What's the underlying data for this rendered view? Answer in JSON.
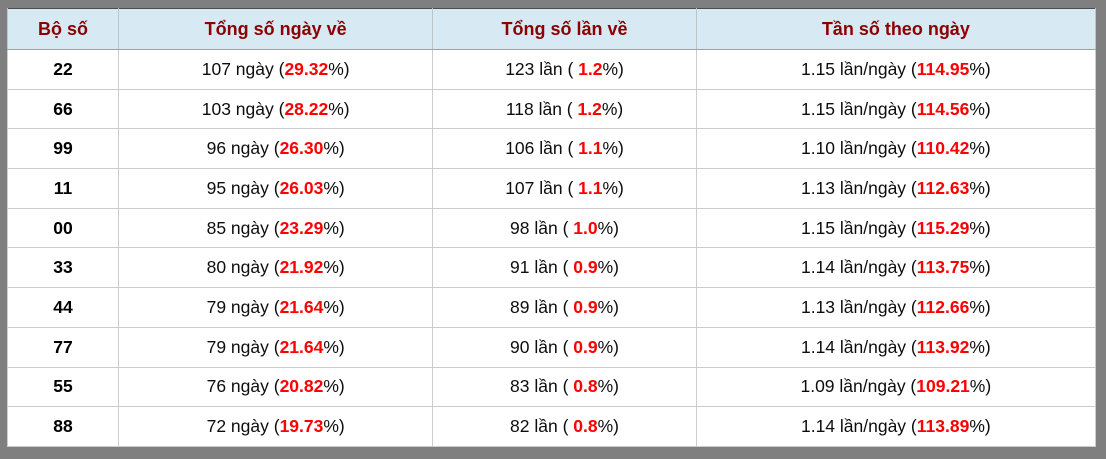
{
  "colors": {
    "frame-gray": "#7f7f7f",
    "header-bg": "#d7eaf4",
    "header-text": "#8b0000",
    "accent-red": "#ff0000",
    "cell-border": "#cccccc"
  },
  "table": {
    "headers": [
      "Bộ số",
      "Tổng số ngày về",
      "Tổng số lần về",
      "Tần số theo ngày"
    ],
    "rows": [
      {
        "pair": "22",
        "days": {
          "pre": "107 ngày (",
          "red": "29.32",
          "post": "%)"
        },
        "times": {
          "pre": "123 lần ( ",
          "red": "1.2",
          "post": "%)"
        },
        "freq": {
          "pre": "1.15 lần/ngày (",
          "red": "114.95",
          "post": "%)"
        }
      },
      {
        "pair": "66",
        "days": {
          "pre": "103 ngày (",
          "red": "28.22",
          "post": "%)"
        },
        "times": {
          "pre": "118 lần ( ",
          "red": "1.2",
          "post": "%)"
        },
        "freq": {
          "pre": "1.15 lần/ngày (",
          "red": "114.56",
          "post": "%)"
        }
      },
      {
        "pair": "99",
        "days": {
          "pre": "96 ngày (",
          "red": "26.30",
          "post": "%)"
        },
        "times": {
          "pre": "106 lần ( ",
          "red": "1.1",
          "post": "%)"
        },
        "freq": {
          "pre": "1.10 lần/ngày (",
          "red": "110.42",
          "post": "%)"
        }
      },
      {
        "pair": "11",
        "days": {
          "pre": "95 ngày (",
          "red": "26.03",
          "post": "%)"
        },
        "times": {
          "pre": "107 lần ( ",
          "red": "1.1",
          "post": "%)"
        },
        "freq": {
          "pre": "1.13 lần/ngày (",
          "red": "112.63",
          "post": "%)"
        }
      },
      {
        "pair": "00",
        "days": {
          "pre": "85 ngày (",
          "red": "23.29",
          "post": "%)"
        },
        "times": {
          "pre": "98 lần ( ",
          "red": "1.0",
          "post": "%)"
        },
        "freq": {
          "pre": "1.15 lần/ngày (",
          "red": "115.29",
          "post": "%)"
        }
      },
      {
        "pair": "33",
        "days": {
          "pre": "80 ngày (",
          "red": "21.92",
          "post": "%)"
        },
        "times": {
          "pre": "91 lần ( ",
          "red": "0.9",
          "post": "%)"
        },
        "freq": {
          "pre": "1.14 lần/ngày (",
          "red": "113.75",
          "post": "%)"
        }
      },
      {
        "pair": "44",
        "days": {
          "pre": "79 ngày (",
          "red": "21.64",
          "post": "%)"
        },
        "times": {
          "pre": "89 lần ( ",
          "red": "0.9",
          "post": "%)"
        },
        "freq": {
          "pre": "1.13 lần/ngày (",
          "red": "112.66",
          "post": "%)"
        }
      },
      {
        "pair": "77",
        "days": {
          "pre": "79 ngày (",
          "red": "21.64",
          "post": "%)"
        },
        "times": {
          "pre": "90 lần ( ",
          "red": "0.9",
          "post": "%)"
        },
        "freq": {
          "pre": "1.14 lần/ngày (",
          "red": "113.92",
          "post": "%)"
        }
      },
      {
        "pair": "55",
        "days": {
          "pre": "76 ngày (",
          "red": "20.82",
          "post": "%)"
        },
        "times": {
          "pre": "83 lần ( ",
          "red": "0.8",
          "post": "%)"
        },
        "freq": {
          "pre": "1.09 lần/ngày (",
          "red": "109.21",
          "post": "%)"
        }
      },
      {
        "pair": "88",
        "days": {
          "pre": "72 ngày (",
          "red": "19.73",
          "post": "%)"
        },
        "times": {
          "pre": "82 lần ( ",
          "red": "0.8",
          "post": "%)"
        },
        "freq": {
          "pre": "1.14 lần/ngày (",
          "red": "113.89",
          "post": "%)"
        }
      }
    ]
  }
}
